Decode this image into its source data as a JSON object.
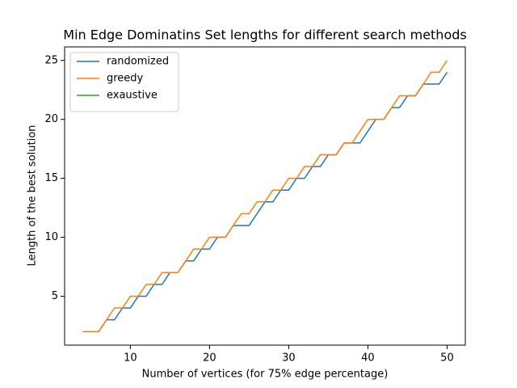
{
  "chart_data": {
    "type": "line",
    "title": "Min Edge Dominatins Set lengths for different search methods",
    "xlabel": "Number of vertices (for 75% edge percentage)",
    "ylabel": "Length of the best solution",
    "x": [
      4,
      5,
      6,
      7,
      8,
      9,
      10,
      11,
      12,
      13,
      14,
      15,
      16,
      17,
      18,
      19,
      20,
      21,
      22,
      23,
      24,
      25,
      26,
      27,
      28,
      29,
      30,
      31,
      32,
      33,
      34,
      35,
      36,
      37,
      38,
      39,
      40,
      41,
      42,
      43,
      44,
      45,
      46,
      47,
      48,
      49,
      50
    ],
    "series": [
      {
        "name": "randomized",
        "color": "#1f77b4",
        "values": [
          2,
          2,
          2,
          3,
          3,
          4,
          4,
          5,
          5,
          6,
          6,
          7,
          7,
          8,
          8,
          9,
          9,
          10,
          10,
          11,
          11,
          11,
          12,
          13,
          13,
          14,
          14,
          15,
          15,
          16,
          16,
          17,
          17,
          18,
          18,
          18,
          19,
          20,
          20,
          21,
          21,
          22,
          22,
          23,
          23,
          23,
          24
        ]
      },
      {
        "name": "greedy",
        "color": "#ff7f0e",
        "values": [
          2,
          2,
          2,
          3,
          4,
          4,
          5,
          5,
          6,
          6,
          7,
          7,
          7,
          8,
          9,
          9,
          10,
          10,
          10,
          11,
          12,
          12,
          13,
          13,
          14,
          14,
          15,
          15,
          16,
          16,
          17,
          17,
          17,
          18,
          18,
          19,
          20,
          20,
          20,
          21,
          22,
          22,
          22,
          23,
          24,
          24,
          25
        ]
      },
      {
        "name": "exaustive",
        "color": "#2ca02c",
        "values": [
          null,
          null,
          null,
          null,
          null,
          null,
          null,
          null,
          null,
          null,
          null,
          null,
          null,
          null,
          null,
          null,
          null,
          null,
          null,
          null,
          null,
          null,
          null,
          null,
          null,
          null,
          null,
          null,
          null,
          null,
          null,
          null,
          null,
          null,
          null,
          null,
          null,
          null,
          null,
          null,
          null,
          null,
          null,
          null,
          null,
          null,
          null
        ]
      }
    ],
    "xlim": [
      1.7,
      52.3
    ],
    "ylim": [
      0.85,
      26.15
    ],
    "xticks": [
      10,
      20,
      30,
      40,
      50
    ],
    "yticks": [
      5,
      10,
      15,
      20,
      25
    ],
    "grid": false,
    "legend": "upper left"
  }
}
